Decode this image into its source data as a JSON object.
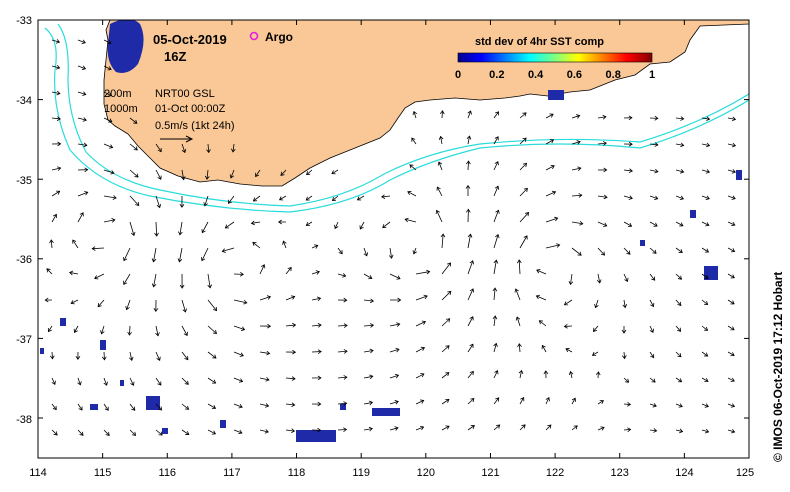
{
  "date": "05-Oct-2019",
  "time": "16Z",
  "argo_label": "Argo",
  "colorbar": {
    "title": "std dev of 4hr SST comp",
    "ticks": [
      "0",
      "0.2",
      "0.4",
      "0.6",
      "0.8",
      "1"
    ]
  },
  "info": {
    "depth_a": "200m",
    "depth_b": "1000m",
    "product": "NRT00 GSL",
    "product_time": "01-Oct 00:00Z",
    "scale": "0.5m/s (1kt 24h)"
  },
  "credit": "© IMOS 06-Oct-2019 17:12 Hobart",
  "axes": {
    "x_ticks": [
      "114",
      "115",
      "116",
      "117",
      "118",
      "119",
      "120",
      "121",
      "122",
      "123",
      "124",
      "125"
    ],
    "y_ticks": [
      "-33",
      "-34",
      "-35",
      "-36",
      "-37",
      "-38"
    ],
    "xlim": [
      114,
      125
    ],
    "ylim": [
      -38.5,
      -33
    ]
  },
  "colors": {
    "land": "#f9c896",
    "bathy_contour": "#2bdcdc",
    "vectors": "#000000",
    "argo_marker": "#e020e0",
    "sst_low": "#0a2a9c"
  }
}
